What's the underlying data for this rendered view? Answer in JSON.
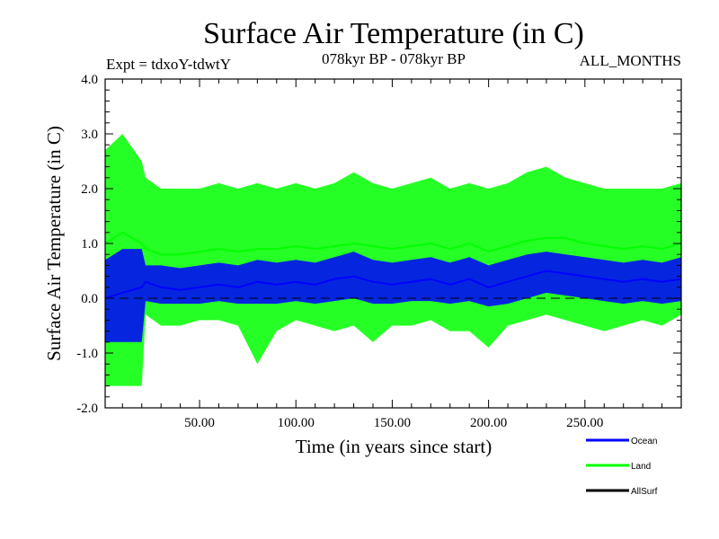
{
  "chart_data": {
    "type": "line",
    "title": "Surface Air Temperature (in C)",
    "subtitle_left": "Expt = tdxoY-tdwtY",
    "subtitle_center": "078kyr BP - 078kyr BP",
    "subtitle_right": "ALL_MONTHS",
    "xlabel": "Time (in years since start)",
    "ylabel": "Surface Air Temperature (in C)",
    "xlim": [
      1,
      300
    ],
    "ylim": [
      -2.0,
      4.0
    ],
    "x_ticks": [
      50,
      100,
      150,
      200,
      250
    ],
    "x_tick_labels": [
      "50.00",
      "100.00",
      "150.00",
      "200.00",
      "250.00"
    ],
    "y_ticks": [
      -2.0,
      -1.0,
      0.0,
      1.0,
      2.0,
      3.0,
      4.0
    ],
    "y_tick_labels": [
      "-2.0",
      "-1.0",
      "0.0",
      "1.0",
      "2.0",
      "3.0",
      "4.0"
    ],
    "reference_line": 0.0,
    "series": [
      {
        "name": "Ocean",
        "color": "#0000ff",
        "x": [
          1,
          10,
          20,
          22,
          30,
          40,
          50,
          60,
          70,
          80,
          90,
          100,
          110,
          120,
          130,
          140,
          150,
          160,
          170,
          180,
          190,
          200,
          210,
          220,
          230,
          240,
          250,
          260,
          270,
          280,
          290,
          300
        ],
        "y": [
          0.0,
          0.1,
          0.2,
          0.3,
          0.2,
          0.15,
          0.2,
          0.25,
          0.2,
          0.3,
          0.25,
          0.3,
          0.25,
          0.35,
          0.4,
          0.3,
          0.25,
          0.3,
          0.35,
          0.25,
          0.35,
          0.2,
          0.3,
          0.4,
          0.5,
          0.45,
          0.4,
          0.35,
          0.3,
          0.35,
          0.3,
          0.35
        ],
        "y_min": [
          -0.8,
          -0.8,
          -0.8,
          -0.05,
          -0.1,
          -0.1,
          -0.1,
          -0.05,
          -0.1,
          -0.1,
          -0.1,
          -0.05,
          -0.1,
          -0.05,
          0.0,
          -0.1,
          -0.1,
          -0.05,
          -0.05,
          -0.1,
          -0.05,
          -0.15,
          -0.1,
          0.0,
          0.1,
          0.05,
          0.0,
          -0.05,
          -0.1,
          -0.05,
          -0.1,
          -0.05
        ],
        "y_max": [
          0.7,
          0.9,
          0.9,
          0.6,
          0.6,
          0.55,
          0.6,
          0.65,
          0.6,
          0.7,
          0.65,
          0.7,
          0.65,
          0.75,
          0.85,
          0.7,
          0.65,
          0.7,
          0.75,
          0.65,
          0.75,
          0.6,
          0.7,
          0.8,
          0.85,
          0.8,
          0.75,
          0.7,
          0.65,
          0.7,
          0.65,
          0.75
        ]
      },
      {
        "name": "Land",
        "color": "#00ff00",
        "x": [
          1,
          10,
          20,
          22,
          30,
          40,
          50,
          60,
          70,
          80,
          90,
          100,
          110,
          120,
          130,
          140,
          150,
          160,
          170,
          180,
          190,
          200,
          210,
          220,
          230,
          240,
          250,
          260,
          270,
          280,
          290,
          300
        ],
        "y": [
          1.0,
          1.2,
          1.0,
          0.9,
          0.8,
          0.8,
          0.85,
          0.9,
          0.85,
          0.9,
          0.9,
          0.95,
          0.9,
          0.95,
          1.0,
          0.95,
          0.9,
          0.95,
          1.0,
          0.9,
          1.0,
          0.85,
          0.95,
          1.05,
          1.1,
          1.1,
          1.0,
          0.95,
          0.9,
          0.95,
          0.9,
          1.0
        ],
        "y_min": [
          -1.6,
          -1.6,
          -1.6,
          -0.3,
          -0.5,
          -0.5,
          -0.4,
          -0.4,
          -0.5,
          -1.2,
          -0.6,
          -0.4,
          -0.5,
          -0.6,
          -0.5,
          -0.8,
          -0.5,
          -0.5,
          -0.4,
          -0.6,
          -0.6,
          -0.9,
          -0.5,
          -0.4,
          -0.3,
          -0.4,
          -0.5,
          -0.6,
          -0.5,
          -0.4,
          -0.5,
          -0.3
        ],
        "y_max": [
          2.7,
          3.0,
          2.5,
          2.2,
          2.0,
          2.0,
          2.0,
          2.1,
          2.0,
          2.1,
          2.0,
          2.1,
          2.0,
          2.1,
          2.3,
          2.1,
          2.0,
          2.1,
          2.2,
          2.0,
          2.1,
          2.0,
          2.1,
          2.3,
          2.4,
          2.2,
          2.1,
          2.0,
          2.0,
          2.0,
          2.0,
          2.1
        ]
      },
      {
        "name": "AllSurf",
        "color": "#000000",
        "x": [],
        "y": []
      }
    ]
  }
}
